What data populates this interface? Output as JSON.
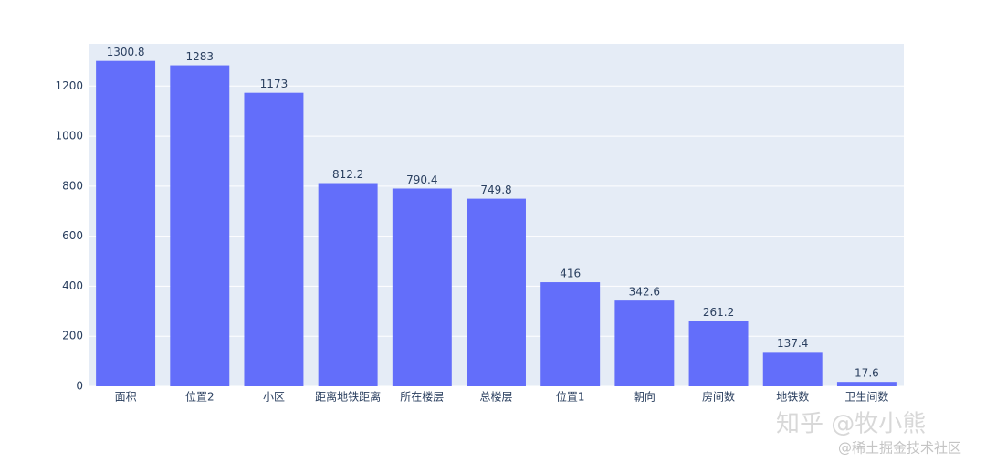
{
  "chart_data": {
    "type": "bar",
    "categories": [
      "面积",
      "位置2",
      "小区",
      "距离地铁距离",
      "所在楼层",
      "总楼层",
      "位置1",
      "朝向",
      "房间数",
      "地铁数",
      "卫生间数"
    ],
    "values": [
      1300.8,
      1283,
      1173,
      812.2,
      790.4,
      749.8,
      416,
      342.6,
      261.2,
      137.4,
      17.6
    ],
    "color": "#636efa",
    "ylim": [
      0,
      1369
    ],
    "yticks": [
      0,
      200,
      400,
      600,
      800,
      1000,
      1200
    ],
    "grid": true
  },
  "watermarks": [
    "知乎 @牧小熊",
    "@稀土掘金技术社区"
  ]
}
